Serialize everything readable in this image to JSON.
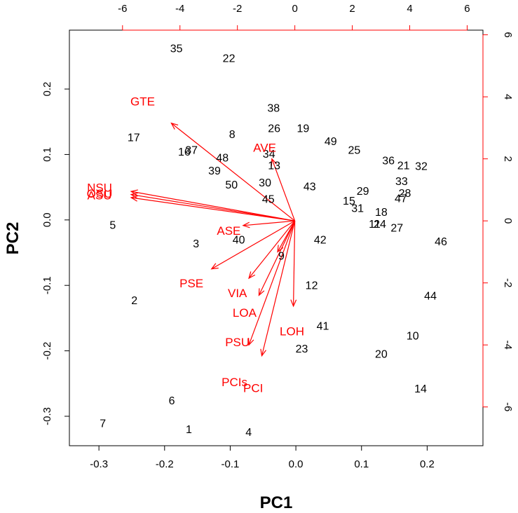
{
  "chart_data": {
    "type": "biplot",
    "xlabel": "PC1",
    "ylabel": "PC2",
    "xlim": [
      -0.345,
      0.285
    ],
    "ylim": [
      -0.345,
      0.29
    ],
    "x_ticks": [
      "-0.3",
      "-0.2",
      "-0.1",
      "0.0",
      "0.1",
      "0.2"
    ],
    "x_tick_values": [
      -0.3,
      -0.2,
      -0.1,
      0.0,
      0.1,
      0.2
    ],
    "y_ticks": [
      "-0.3",
      "-0.2",
      "-0.1",
      "0.0",
      "0.1",
      "0.2"
    ],
    "y_tick_values": [
      -0.3,
      -0.2,
      -0.1,
      0.0,
      0.1,
      0.2
    ],
    "loading_scale": {
      "xlim": [
        -7.85,
        6.55
      ],
      "ylim": [
        -7.25,
        6.15
      ],
      "x_ticks": [
        "-6",
        "-4",
        "-2",
        "0",
        "2",
        "4",
        "6"
      ],
      "x_tick_values": [
        -6,
        -4,
        -2,
        0,
        2,
        4,
        6
      ],
      "y_ticks": [
        "-6",
        "-4",
        "-2",
        "0",
        "2",
        "4",
        "6"
      ],
      "y_tick_values": [
        -6,
        -4,
        -2,
        0,
        2,
        4,
        6
      ]
    },
    "observations": [
      {
        "label": "1",
        "x": -0.163,
        "y": -0.321
      },
      {
        "label": "2",
        "x": -0.246,
        "y": -0.124
      },
      {
        "label": "3",
        "x": -0.152,
        "y": -0.037
      },
      {
        "label": "4",
        "x": -0.072,
        "y": -0.325
      },
      {
        "label": "5",
        "x": -0.279,
        "y": -0.009
      },
      {
        "label": "6",
        "x": -0.189,
        "y": -0.277
      },
      {
        "label": "7",
        "x": -0.294,
        "y": -0.312
      },
      {
        "label": "8",
        "x": -0.097,
        "y": 0.13
      },
      {
        "label": "9",
        "x": -0.022,
        "y": -0.056
      },
      {
        "label": "10",
        "x": 0.178,
        "y": -0.178
      },
      {
        "label": "11",
        "x": 0.12,
        "y": -0.007
      },
      {
        "label": "12",
        "x": 0.024,
        "y": -0.101
      },
      {
        "label": "13",
        "x": -0.033,
        "y": 0.082
      },
      {
        "label": "14",
        "x": 0.19,
        "y": -0.259
      },
      {
        "label": "15",
        "x": 0.081,
        "y": 0.028
      },
      {
        "label": "16",
        "x": -0.17,
        "y": 0.103
      },
      {
        "label": "17",
        "x": -0.247,
        "y": 0.125
      },
      {
        "label": "18",
        "x": 0.13,
        "y": 0.011
      },
      {
        "label": "19",
        "x": 0.011,
        "y": 0.139
      },
      {
        "label": "20",
        "x": 0.13,
        "y": -0.206
      },
      {
        "label": "21",
        "x": 0.164,
        "y": 0.082
      },
      {
        "label": "22",
        "x": -0.102,
        "y": 0.246
      },
      {
        "label": "23",
        "x": 0.009,
        "y": -0.198
      },
      {
        "label": "24",
        "x": 0.128,
        "y": -0.007
      },
      {
        "label": "25",
        "x": 0.089,
        "y": 0.106
      },
      {
        "label": "26",
        "x": -0.033,
        "y": 0.139
      },
      {
        "label": "27",
        "x": 0.154,
        "y": -0.013
      },
      {
        "label": "28",
        "x": 0.166,
        "y": 0.04
      },
      {
        "label": "29",
        "x": 0.102,
        "y": 0.043
      },
      {
        "label": "30",
        "x": -0.047,
        "y": 0.056
      },
      {
        "label": "31",
        "x": 0.094,
        "y": 0.017
      },
      {
        "label": "32",
        "x": 0.191,
        "y": 0.081
      },
      {
        "label": "33",
        "x": 0.161,
        "y": 0.058
      },
      {
        "label": "34",
        "x": -0.041,
        "y": 0.1
      },
      {
        "label": "35",
        "x": -0.182,
        "y": 0.261
      },
      {
        "label": "36",
        "x": 0.141,
        "y": 0.09
      },
      {
        "label": "37",
        "x": -0.159,
        "y": 0.106
      },
      {
        "label": "38",
        "x": -0.034,
        "y": 0.17
      },
      {
        "label": "39",
        "x": -0.124,
        "y": 0.074
      },
      {
        "label": "40",
        "x": -0.087,
        "y": -0.031
      },
      {
        "label": "41",
        "x": 0.041,
        "y": -0.163
      },
      {
        "label": "42",
        "x": 0.037,
        "y": -0.031
      },
      {
        "label": "43",
        "x": 0.021,
        "y": 0.05
      },
      {
        "label": "44",
        "x": 0.205,
        "y": -0.117
      },
      {
        "label": "45",
        "x": -0.042,
        "y": 0.031
      },
      {
        "label": "46",
        "x": 0.221,
        "y": -0.034
      },
      {
        "label": "47",
        "x": 0.16,
        "y": 0.032
      },
      {
        "label": "48",
        "x": -0.112,
        "y": 0.094
      },
      {
        "label": "49",
        "x": 0.053,
        "y": 0.119
      },
      {
        "label": "50",
        "x": -0.098,
        "y": 0.053
      }
    ],
    "loadings": [
      {
        "label": "GTE",
        "x": -4.3,
        "y": 3.15,
        "label_x": -5.3,
        "label_y": 3.85
      },
      {
        "label": "AVE",
        "x": -0.8,
        "y": 2.0,
        "label_x": -1.05,
        "label_y": 2.35
      },
      {
        "label": "NSU",
        "x": -5.7,
        "y": 0.95,
        "label_x": -6.8,
        "label_y": 1.07
      },
      {
        "label": "OSU",
        "x": -5.7,
        "y": 0.85,
        "label_x": -6.8,
        "label_y": 0.87
      },
      {
        "label": "ASU",
        "x": -5.7,
        "y": 0.75,
        "label_x": -6.8,
        "label_y": 0.82
      },
      {
        "label": "ASE",
        "x": -1.8,
        "y": -0.15,
        "label_x": -2.3,
        "label_y": -0.32
      },
      {
        "label": "PSE",
        "x": -2.9,
        "y": -1.55,
        "label_x": -3.6,
        "label_y": -2.02
      },
      {
        "label": "VIA",
        "x": -1.6,
        "y": -1.85,
        "label_x": -2.0,
        "label_y": -2.33
      },
      {
        "label": "LOA",
        "x": -1.25,
        "y": -2.4,
        "label_x": -1.75,
        "label_y": -2.97
      },
      {
        "label": "LOH",
        "x": -0.05,
        "y": -2.75,
        "label_x": -0.1,
        "label_y": -3.57
      },
      {
        "label": "PSU",
        "x": -1.6,
        "y": -4.0,
        "label_x": -2.0,
        "label_y": -3.92
      },
      {
        "label": "PCI",
        "x": -1.15,
        "y": -4.35,
        "label_x": -1.45,
        "label_y": -5.4
      },
      {
        "label": "PCIs",
        "x": -0.6,
        "y": -1.0,
        "label_x": -2.1,
        "label_y": -5.2
      }
    ],
    "arrow_color": "#ff0000",
    "label_color": "#ff0000",
    "point_label_color": "#000000"
  }
}
